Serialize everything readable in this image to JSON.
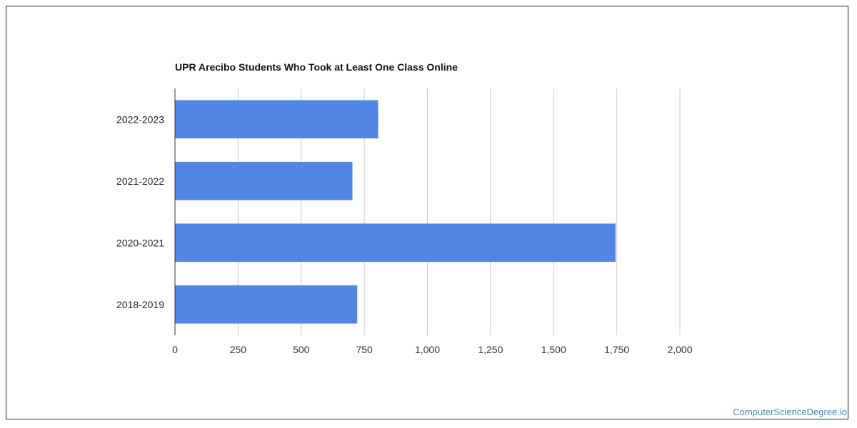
{
  "chart_data": {
    "type": "bar",
    "orientation": "horizontal",
    "title": "UPR Arecibo Students Who Took at Least One Class Online",
    "categories": [
      "2022-2023",
      "2021-2022",
      "2020-2021",
      "2018-2019"
    ],
    "values": [
      805,
      703,
      1745,
      722
    ],
    "xlim": [
      0,
      2000
    ],
    "x_ticks": [
      0,
      250,
      500,
      750,
      1000,
      1250,
      1500,
      1750,
      2000
    ],
    "x_tick_labels": [
      "0",
      "250",
      "500",
      "750",
      "1,000",
      "1,250",
      "1,500",
      "1,750",
      "2,000"
    ],
    "grid": "vertical",
    "bar_color": "#5286e5",
    "legend": "none"
  },
  "footer": {
    "watermark": "ComputerScienceDegree.io"
  }
}
